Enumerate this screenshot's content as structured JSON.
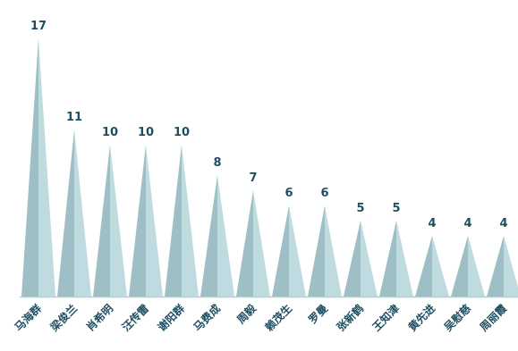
{
  "chart_data": {
    "type": "bar",
    "categories": [
      "马海群",
      "梁俊兰",
      "肖希明",
      "汪传雷",
      "谢阳群",
      "马费成",
      "周毅",
      "赖茂生",
      "罗曼",
      "张新鹤",
      "王知津",
      "黄先进",
      "吴慰慈",
      "周丽霞"
    ],
    "values": [
      17,
      11,
      10,
      10,
      10,
      8,
      7,
      6,
      6,
      5,
      5,
      4,
      4,
      4
    ],
    "title": "",
    "xlabel": "",
    "ylabel": "",
    "ylim": [
      0,
      17
    ],
    "grid": false,
    "legend": "none",
    "colors": {
      "light_face": "#c0dbdf",
      "dark_face": "#9ebfc5",
      "baseline": "#b3cfd4",
      "label": "#1d4f63"
    }
  }
}
